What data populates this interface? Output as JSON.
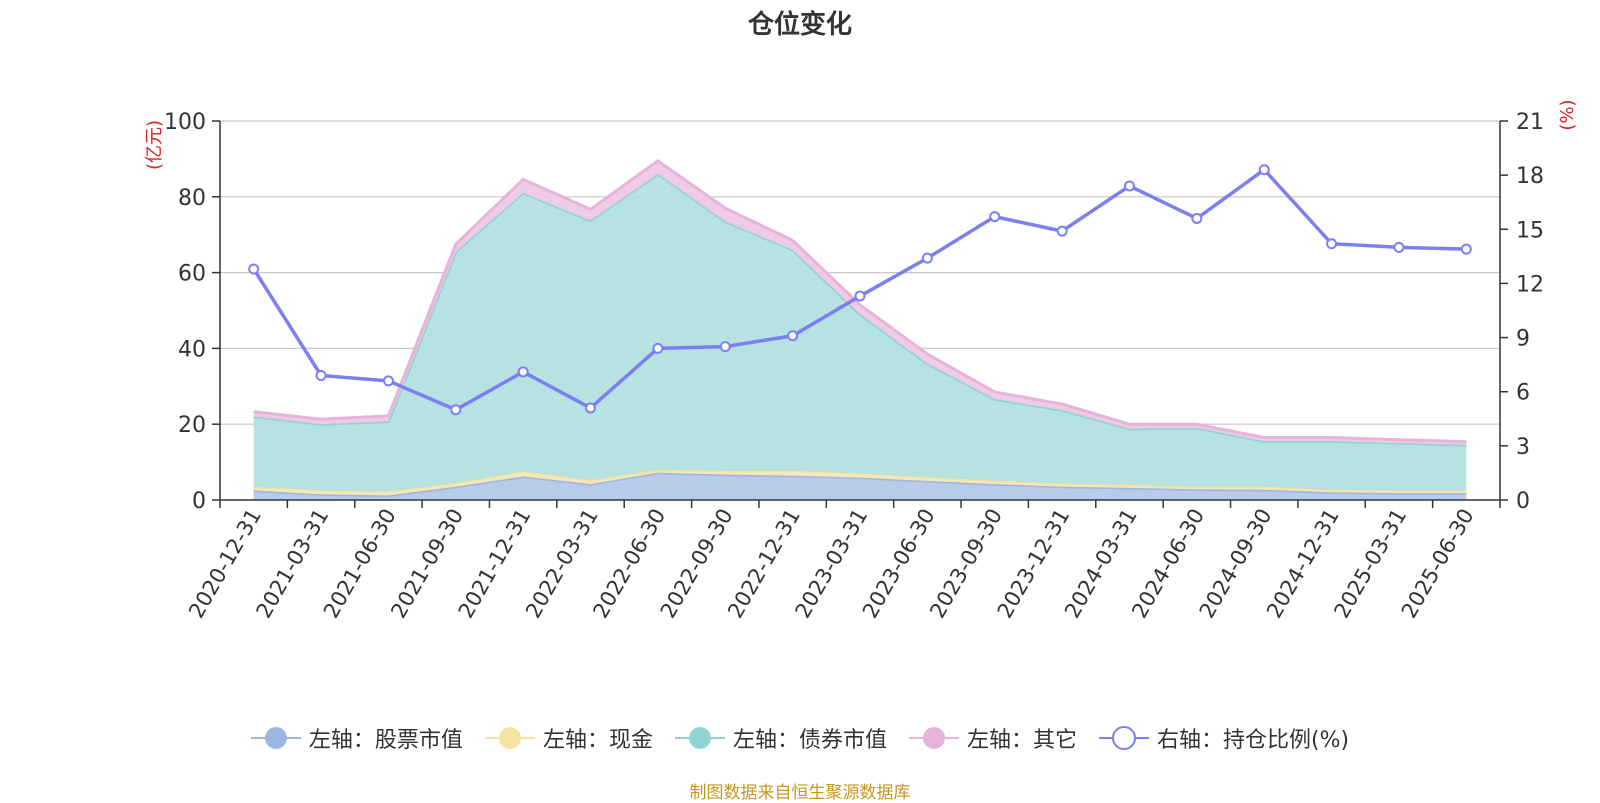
{
  "chart_data": {
    "type": "area",
    "title": "仓位变化",
    "left_axis_unit": "(亿元)",
    "right_axis_unit": "(%)",
    "left_axis_ticks": [
      "0",
      "20",
      "40",
      "60",
      "80",
      "100"
    ],
    "right_axis_ticks": [
      "0",
      "3",
      "6",
      "9",
      "12",
      "15",
      "18",
      "21"
    ],
    "ylim_left": [
      0,
      100
    ],
    "ylim_right": [
      0,
      21
    ],
    "stacked": true,
    "grid": true,
    "legend_position": "bottom",
    "categories": [
      "2020-12-31",
      "2021-03-31",
      "2021-06-30",
      "2021-09-30",
      "2021-12-31",
      "2022-03-31",
      "2022-06-30",
      "2022-09-30",
      "2022-12-31",
      "2023-03-31",
      "2023-06-30",
      "2023-09-30",
      "2023-12-31",
      "2024-03-31",
      "2024-06-30",
      "2024-09-30",
      "2024-12-31",
      "2025-03-31",
      "2025-06-30"
    ],
    "series": [
      {
        "name": "左轴：股票市值",
        "axis": "left",
        "color": "#9bb6e0",
        "fill": "#b4c8ea",
        "values": [
          2.5,
          1.5,
          1.2,
          3.5,
          6.2,
          4.2,
          7.2,
          6.7,
          6.4,
          5.9,
          5.0,
          4.2,
          3.5,
          3.2,
          2.8,
          2.7,
          2.0,
          1.8,
          1.8
        ]
      },
      {
        "name": "左轴：现金",
        "axis": "left",
        "color": "#f5e3a0",
        "fill": "#f5e8b8",
        "values": [
          1.0,
          1.0,
          1.0,
          1.0,
          1.3,
          1.0,
          0.8,
          1.0,
          1.3,
          1.1,
          1.0,
          0.9,
          0.8,
          0.8,
          0.7,
          0.8,
          0.7,
          0.7,
          0.7
        ]
      },
      {
        "name": "左轴：债券市值",
        "axis": "left",
        "color": "#8fd3d3",
        "fill": "#b3e0e0",
        "values": [
          18.5,
          17.5,
          18.5,
          61.0,
          73.5,
          68.5,
          78.0,
          65.8,
          58.3,
          42.0,
          30.0,
          21.5,
          19.4,
          14.8,
          15.5,
          12.0,
          12.8,
          12.5,
          12.0
        ]
      },
      {
        "name": "左轴：其它",
        "axis": "left",
        "color": "#e6b3da",
        "fill": "#eec8e4",
        "values": [
          1.3,
          1.3,
          1.5,
          2.0,
          3.6,
          3.0,
          3.5,
          3.5,
          2.5,
          2.5,
          2.5,
          1.9,
          1.6,
          1.2,
          1.0,
          1.0,
          1.0,
          0.9,
          0.9
        ]
      },
      {
        "name": "右轴：持仓比例(%)",
        "axis": "right",
        "color": "#7b7ff0",
        "values": [
          12.8,
          6.9,
          6.6,
          5.0,
          7.1,
          5.1,
          8.4,
          8.5,
          9.1,
          11.3,
          13.4,
          15.7,
          14.9,
          17.4,
          15.6,
          18.3,
          14.2,
          14.0,
          13.9
        ]
      }
    ]
  },
  "footer": {
    "source_text": "制图数据来自恒生聚源数据库",
    "source_color": "#c8961e"
  },
  "colors": {
    "axis_unit": "#e02020",
    "axis_text": "#333333",
    "grid": "#c8c8c8"
  }
}
